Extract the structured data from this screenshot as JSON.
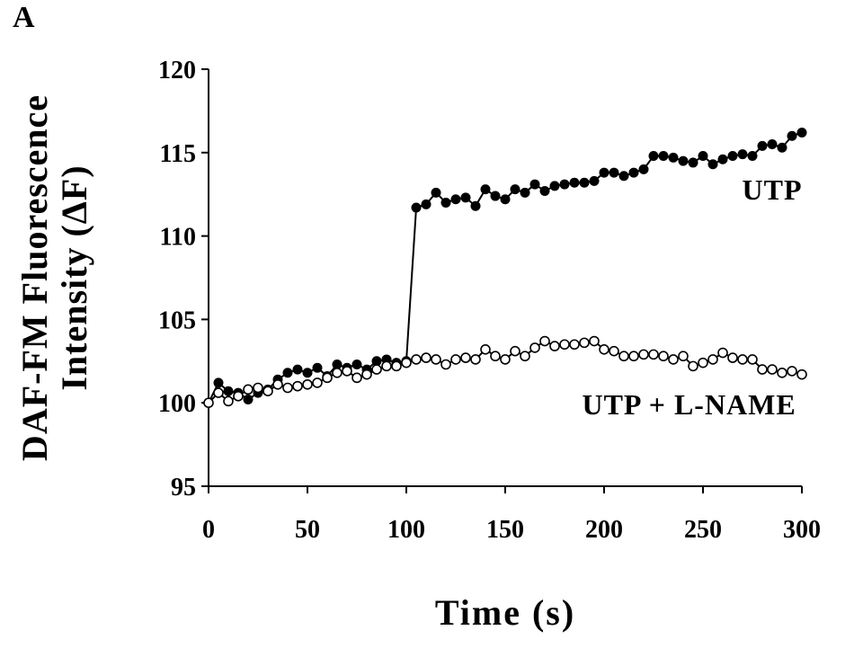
{
  "panel_label": "A",
  "chart_data": {
    "type": "line",
    "title": "",
    "xlabel": "Time (s)",
    "ylabel_line1": "DAF-FM Fluorescence",
    "ylabel_line2": "Intensity (ΔF)",
    "xlim": [
      0,
      300
    ],
    "ylim": [
      95,
      120
    ],
    "xticks": [
      0,
      50,
      100,
      150,
      200,
      250,
      300
    ],
    "yticks": [
      95,
      100,
      105,
      110,
      115,
      120
    ],
    "grid": false,
    "series": [
      {
        "name": "UTP",
        "marker": "filled-circle",
        "color": "#000000",
        "label_anchor": [
          285,
          112.2
        ],
        "x": [
          0,
          5,
          10,
          15,
          20,
          25,
          30,
          35,
          40,
          45,
          50,
          55,
          60,
          65,
          70,
          75,
          80,
          85,
          90,
          95,
          100,
          105,
          110,
          115,
          120,
          125,
          130,
          135,
          140,
          145,
          150,
          155,
          160,
          165,
          170,
          175,
          180,
          185,
          190,
          195,
          200,
          205,
          210,
          215,
          220,
          225,
          230,
          235,
          240,
          245,
          250,
          255,
          260,
          265,
          270,
          275,
          280,
          285,
          290,
          295,
          300
        ],
        "values": [
          100.0,
          101.2,
          100.7,
          100.6,
          100.2,
          100.6,
          100.8,
          101.4,
          101.8,
          102.0,
          101.8,
          102.1,
          101.6,
          102.3,
          102.1,
          102.3,
          102.0,
          102.5,
          102.6,
          102.4,
          102.5,
          111.7,
          111.9,
          112.6,
          112.0,
          112.2,
          112.3,
          111.8,
          112.8,
          112.4,
          112.2,
          112.8,
          112.6,
          113.1,
          112.7,
          113.0,
          113.1,
          113.2,
          113.2,
          113.3,
          113.8,
          113.8,
          113.6,
          113.8,
          114.0,
          114.8,
          114.8,
          114.7,
          114.5,
          114.4,
          114.8,
          114.3,
          114.6,
          114.8,
          114.9,
          114.8,
          115.4,
          115.5,
          115.3,
          116.0,
          116.2
        ]
      },
      {
        "name": "UTP + L-NAME",
        "marker": "open-circle",
        "color": "#000000",
        "label_anchor": [
          243,
          99.3
        ],
        "x": [
          0,
          5,
          10,
          15,
          20,
          25,
          30,
          35,
          40,
          45,
          50,
          55,
          60,
          65,
          70,
          75,
          80,
          85,
          90,
          95,
          100,
          105,
          110,
          115,
          120,
          125,
          130,
          135,
          140,
          145,
          150,
          155,
          160,
          165,
          170,
          175,
          180,
          185,
          190,
          195,
          200,
          205,
          210,
          215,
          220,
          225,
          230,
          235,
          240,
          245,
          250,
          255,
          260,
          265,
          270,
          275,
          280,
          285,
          290,
          295,
          300
        ],
        "values": [
          100.0,
          100.6,
          100.1,
          100.4,
          100.8,
          100.9,
          100.7,
          101.1,
          100.9,
          101.0,
          101.1,
          101.2,
          101.5,
          101.8,
          101.9,
          101.5,
          101.7,
          102.0,
          102.2,
          102.2,
          102.4,
          102.6,
          102.7,
          102.6,
          102.3,
          102.6,
          102.7,
          102.6,
          103.2,
          102.8,
          102.6,
          103.1,
          102.8,
          103.3,
          103.7,
          103.4,
          103.5,
          103.5,
          103.6,
          103.7,
          103.2,
          103.1,
          102.8,
          102.8,
          102.9,
          102.9,
          102.8,
          102.6,
          102.8,
          102.2,
          102.4,
          102.6,
          103.0,
          102.7,
          102.6,
          102.6,
          102.0,
          102.0,
          101.8,
          101.9,
          101.7
        ]
      }
    ]
  }
}
